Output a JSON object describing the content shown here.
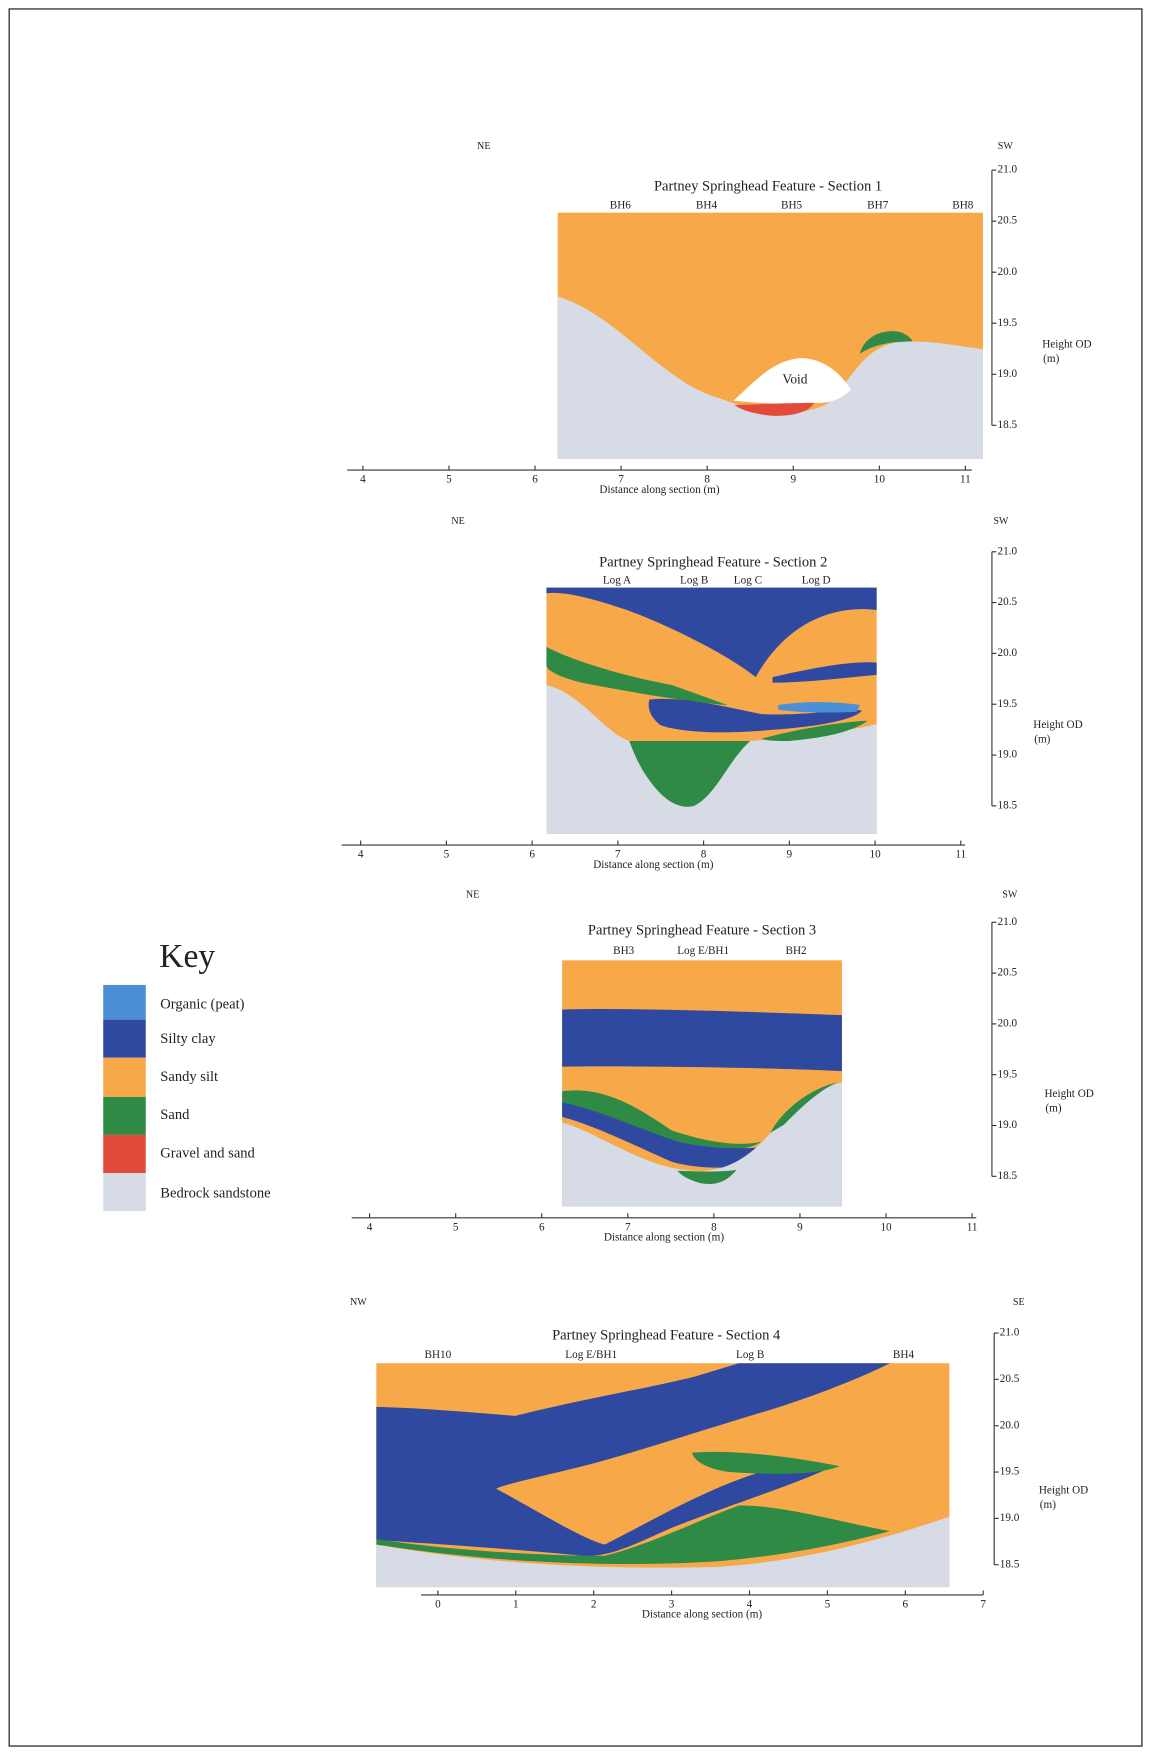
{
  "key": {
    "title": "Key",
    "items": [
      "Organic (peat)",
      "Silty clay",
      "Sandy silt",
      "Sand",
      "Gravel and sand",
      "Bedrock sandstone"
    ]
  },
  "sections": [
    {
      "title": "Partney Springhead Feature - Section 1",
      "left_direction": "NE",
      "right_direction": "SW",
      "boreholes": [
        "BH6",
        "BH4",
        "BH5",
        "BH7",
        "BH8"
      ],
      "annotation": "Void",
      "x_label": "Distance along section (m)",
      "x_ticks": [
        4,
        5,
        6,
        7,
        8,
        9,
        10,
        11
      ],
      "y_ticks": [
        {
          "value": 21,
          "label": "21.0"
        },
        {
          "value": 20.5,
          "label": "20.5"
        },
        {
          "value": 20,
          "label": "20.0"
        },
        {
          "value": 19.5,
          "label": "19.5"
        },
        {
          "value": 19,
          "label": "19.0"
        },
        {
          "value": 18.5,
          "label": "18.5"
        }
      ],
      "y_label": "Height OD",
      "y_unit": "(m)"
    },
    {
      "title": "Partney Springhead Feature - Section 2",
      "left_direction": "NE",
      "right_direction": "SW",
      "boreholes": [
        "Log A",
        "Log B",
        "Log C",
        "Log D"
      ],
      "x_label": "Distance along section (m)",
      "x_ticks": [
        4,
        5,
        6,
        7,
        8,
        9,
        10,
        11
      ],
      "y_ticks": [
        {
          "value": 21,
          "label": "21.0"
        },
        {
          "value": 20.5,
          "label": "20.5"
        },
        {
          "value": 20,
          "label": "20.0"
        },
        {
          "value": 19.5,
          "label": "19.5"
        },
        {
          "value": 19,
          "label": "19.0"
        },
        {
          "value": 18.5,
          "label": "18.5"
        }
      ],
      "y_label": "Height OD",
      "y_unit": "(m)"
    },
    {
      "title": "Partney Springhead Feature - Section 3",
      "left_direction": "NE",
      "right_direction": "SW",
      "boreholes": [
        "BH3",
        "Log E/BH1",
        "BH2"
      ],
      "x_label": "Distance along section (m)",
      "x_ticks": [
        4,
        5,
        6,
        7,
        8,
        9,
        10,
        11
      ],
      "y_ticks": [
        {
          "value": 21,
          "label": "21.0"
        },
        {
          "value": 20.5,
          "label": "20.5"
        },
        {
          "value": 20,
          "label": "20.0"
        },
        {
          "value": 19.5,
          "label": "19.5"
        },
        {
          "value": 19,
          "label": "19.0"
        },
        {
          "value": 18.5,
          "label": "18.5"
        }
      ],
      "y_label": "Height OD",
      "y_unit": "(m)"
    },
    {
      "title": "Partney Springhead Feature - Section 4",
      "left_direction": "NW",
      "right_direction": "SE",
      "boreholes": [
        "BH10",
        "Log E/BH1",
        "Log B",
        "BH4"
      ],
      "x_label": "Distance along section (m)",
      "x_ticks": [
        0,
        1,
        2,
        3,
        4,
        5,
        6,
        7
      ],
      "y_ticks": [
        {
          "value": 21,
          "label": "21.0"
        },
        {
          "value": 20.5,
          "label": "20.5"
        },
        {
          "value": 20,
          "label": "20.0"
        },
        {
          "value": 19.5,
          "label": "19.5"
        },
        {
          "value": 19,
          "label": "19.0"
        },
        {
          "value": 18.5,
          "label": "18.5"
        }
      ],
      "y_label": "Height OD",
      "y_unit": "(m)"
    }
  ]
}
